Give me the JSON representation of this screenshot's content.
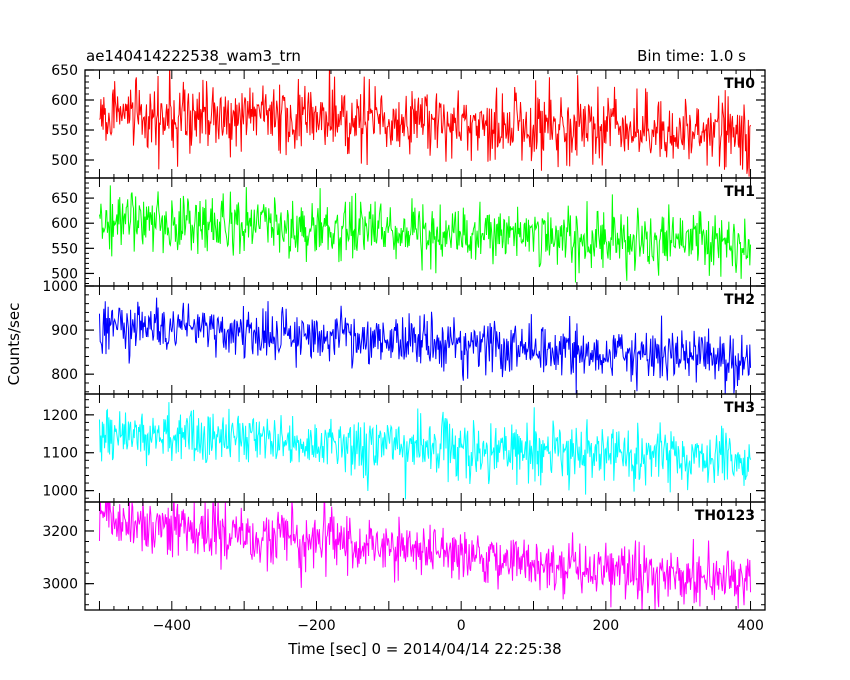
{
  "header": {
    "title": "ae140414222538_wam3_trn",
    "bin_time": "Bin time: 1.0 s"
  },
  "chart_data": {
    "type": "line",
    "title": "ae140414222538_wam3_trn",
    "xlabel": "Time [sec] 0 = 2014/04/14 22:25:38",
    "ylabel": "Counts/sec",
    "xlim": [
      -520,
      420
    ],
    "x_range": [
      -500,
      400
    ],
    "x_ticks": [
      -400,
      -200,
      0,
      200,
      400
    ],
    "x_tick_labels": [
      "−400",
      "−200",
      "0",
      "200",
      "400"
    ],
    "bin_time_s": 1.0,
    "grid": false,
    "panels": [
      {
        "name": "TH0",
        "color": "#ff0000",
        "ylim": [
          470,
          650
        ],
        "yticks": [
          500,
          550,
          600,
          650
        ],
        "trend_start": 580,
        "trend_end": 545,
        "noise_sd": 28
      },
      {
        "name": "TH1",
        "color": "#00ff00",
        "ylim": [
          475,
          690
        ],
        "yticks": [
          500,
          550,
          600,
          650
        ],
        "trend_start": 605,
        "trend_end": 560,
        "noise_sd": 28
      },
      {
        "name": "TH2",
        "color": "#0000ff",
        "ylim": [
          755,
          1000
        ],
        "yticks": [
          800,
          900,
          1000
        ],
        "trend_start": 915,
        "trend_end": 830,
        "noise_sd": 30
      },
      {
        "name": "TH3",
        "color": "#00ffff",
        "ylim": [
          970,
          1255
        ],
        "yticks": [
          1000,
          1100,
          1200
        ],
        "trend_start": 1150,
        "trend_end": 1080,
        "noise_sd": 38
      },
      {
        "name": "TH0123",
        "color": "#ff00ff",
        "ylim": [
          2900,
          3310
        ],
        "yticks": [
          3000,
          3200
        ],
        "trend_start": 3245,
        "trend_end": 3000,
        "noise_sd": 55
      }
    ]
  }
}
